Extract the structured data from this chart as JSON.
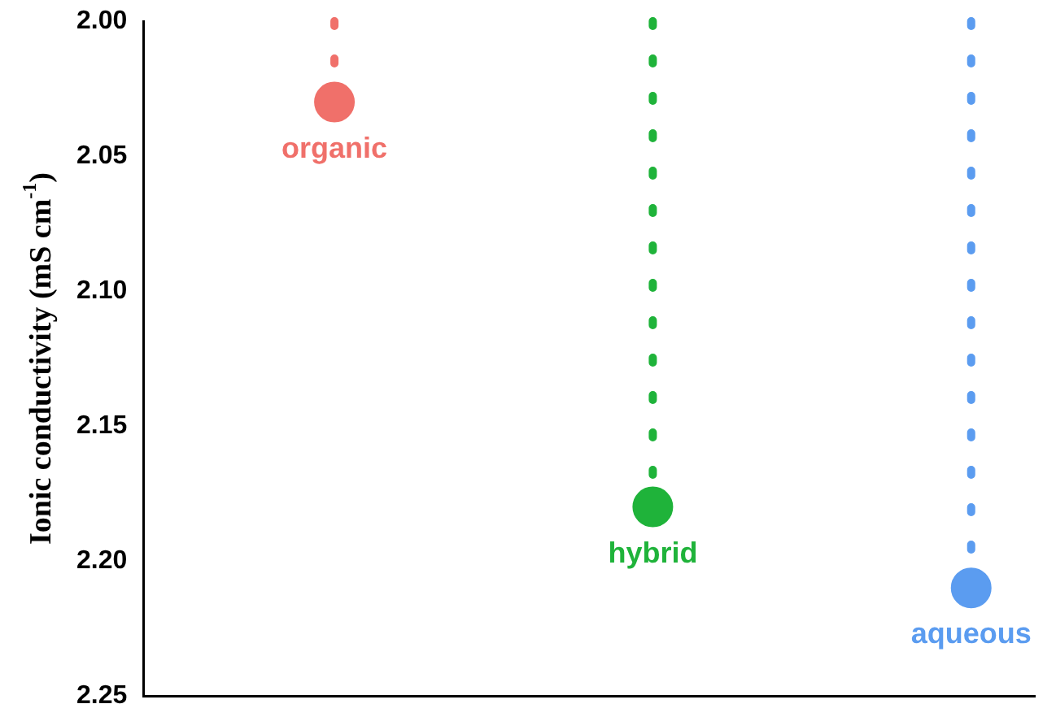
{
  "chart_data": {
    "type": "lollipop",
    "ylabel": "Ionic conductivity (mS cm$^{-1}$)",
    "categories": [
      "organic",
      "hybrid",
      "aqueous"
    ],
    "values": [
      2.03,
      2.18,
      2.21
    ],
    "colors": [
      "#f0706a",
      "#1fb33a",
      "#5b9cf0"
    ],
    "ylim": [
      2.25,
      2.0
    ],
    "yticks": [
      {
        "value": 2.0,
        "label": "2.00"
      },
      {
        "value": 2.05,
        "label": "2.05"
      },
      {
        "value": 2.1,
        "label": "2.10"
      },
      {
        "value": 2.15,
        "label": "2.15"
      },
      {
        "value": 2.2,
        "label": "2.20"
      },
      {
        "value": 2.25,
        "label": "2.25"
      }
    ],
    "marker": "circle",
    "line_style": "dotted",
    "tick_labels": "y",
    "grid": false
  }
}
